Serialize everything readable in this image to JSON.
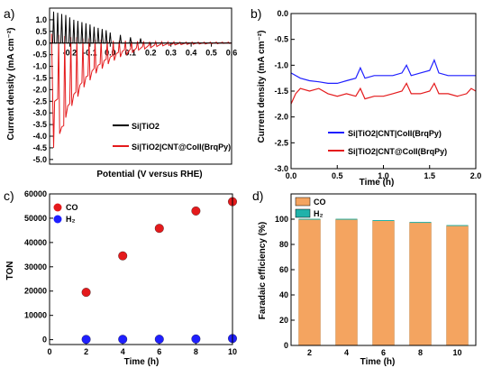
{
  "figure": {
    "panels": [
      {
        "letter": "a)"
      },
      {
        "letter": "b)"
      },
      {
        "letter": "c)"
      },
      {
        "letter": "d)"
      }
    ]
  },
  "chart_data": [
    {
      "panel": "a)",
      "type": "line",
      "xlabel": "Potential (V versus RHE)",
      "ylabel": "Current density (mA cm⁻²)",
      "xlim": [
        -0.3,
        0.6
      ],
      "ylim": [
        -5.2,
        1.5
      ],
      "xticks": [
        -0.2,
        -0.1,
        0.0,
        0.1,
        0.2,
        0.3,
        0.4,
        0.5,
        0.6
      ],
      "xtick_labels": [
        "-0.2",
        "-0.1",
        "0.0",
        "0.1",
        "0.2",
        "0.3",
        "0.4",
        "0.5",
        "0.6"
      ],
      "yticks": [
        -5.0,
        -4.5,
        -4.0,
        -3.5,
        -3.0,
        -2.5,
        -2.0,
        -1.5,
        -1.0,
        -0.5,
        0.0,
        0.5,
        1.0
      ],
      "ytick_labels": [
        "-5.0",
        "-4.5",
        "-4.0",
        "-3.5",
        "-3.0",
        "-2.5",
        "-2.0",
        "-1.5",
        "-1.0",
        "-0.5",
        "0.0",
        "0.5",
        "1.0"
      ],
      "legend_position": "lower-right",
      "series": [
        {
          "name": "Si|TiO2",
          "color": "#000000",
          "baseline": 0.0,
          "pulses": [
            {
              "x": -0.28,
              "peak": 1.35
            },
            {
              "x": -0.26,
              "peak": 1.3
            },
            {
              "x": -0.24,
              "peak": 1.25
            },
            {
              "x": -0.22,
              "peak": 1.2
            },
            {
              "x": -0.2,
              "peak": 1.1
            },
            {
              "x": -0.18,
              "peak": 1.0
            },
            {
              "x": -0.16,
              "peak": 0.95
            },
            {
              "x": -0.14,
              "peak": 0.9
            },
            {
              "x": -0.12,
              "peak": 0.85
            },
            {
              "x": -0.1,
              "peak": 0.8
            },
            {
              "x": -0.08,
              "peak": 0.7
            },
            {
              "x": -0.06,
              "peak": 0.65
            },
            {
              "x": -0.04,
              "peak": 0.6
            },
            {
              "x": -0.02,
              "peak": 0.55
            },
            {
              "x": 0.0,
              "peak": 0.45
            },
            {
              "x": 0.05,
              "peak": 0.35
            },
            {
              "x": 0.1,
              "peak": 0.25
            },
            {
              "x": 0.15,
              "peak": 0.2
            }
          ]
        },
        {
          "name": "Si|TiO2|CNT@CoII(BrqPy)",
          "color": "#e41a1c",
          "points": [
            [
              -0.29,
              0.4
            ],
            [
              -0.28,
              -4.5
            ],
            [
              -0.275,
              -2.5
            ],
            [
              -0.26,
              -2.4
            ],
            [
              -0.255,
              0.35
            ],
            [
              -0.25,
              -3.9
            ],
            [
              -0.24,
              -3.6
            ],
            [
              -0.23,
              -3.55
            ],
            [
              -0.225,
              0.3
            ],
            [
              -0.22,
              -3.2
            ],
            [
              -0.21,
              -2.7
            ],
            [
              -0.2,
              -2.6
            ],
            [
              -0.195,
              0.25
            ],
            [
              -0.19,
              -2.7
            ],
            [
              -0.18,
              -2.2
            ],
            [
              -0.17,
              -2.1
            ],
            [
              -0.165,
              0.25
            ],
            [
              -0.16,
              -2.3
            ],
            [
              -0.15,
              -1.8
            ],
            [
              -0.14,
              -1.7
            ],
            [
              -0.135,
              0.2
            ],
            [
              -0.13,
              -1.9
            ],
            [
              -0.12,
              -1.45
            ],
            [
              -0.11,
              -1.4
            ],
            [
              -0.105,
              0.2
            ],
            [
              -0.1,
              -1.6
            ],
            [
              -0.09,
              -1.2
            ],
            [
              -0.08,
              -1.1
            ],
            [
              -0.075,
              0.15
            ],
            [
              -0.07,
              -1.3
            ],
            [
              -0.06,
              -0.95
            ],
            [
              -0.05,
              -0.9
            ],
            [
              -0.045,
              0.15
            ],
            [
              -0.04,
              -1.1
            ],
            [
              -0.03,
              -0.75
            ],
            [
              -0.02,
              -0.7
            ],
            [
              -0.015,
              0.1
            ],
            [
              -0.01,
              -0.9
            ],
            [
              0.0,
              -0.6
            ],
            [
              0.01,
              -0.55
            ],
            [
              0.015,
              0.1
            ],
            [
              0.02,
              -0.75
            ],
            [
              0.03,
              -0.45
            ],
            [
              0.04,
              -0.4
            ],
            [
              0.045,
              0.1
            ],
            [
              0.05,
              -0.6
            ],
            [
              0.06,
              -0.35
            ],
            [
              0.07,
              -0.3
            ],
            [
              0.075,
              0.1
            ],
            [
              0.08,
              -0.5
            ],
            [
              0.1,
              -0.25
            ],
            [
              0.105,
              0.08
            ],
            [
              0.11,
              -0.4
            ],
            [
              0.13,
              -0.2
            ],
            [
              0.135,
              0.08
            ],
            [
              0.14,
              -0.3
            ],
            [
              0.16,
              -0.15
            ],
            [
              0.165,
              0.08
            ],
            [
              0.17,
              -0.25
            ],
            [
              0.19,
              -0.1
            ],
            [
              0.195,
              0.06
            ],
            [
              0.2,
              -0.2
            ],
            [
              0.22,
              -0.08
            ],
            [
              0.225,
              0.06
            ],
            [
              0.23,
              -0.15
            ],
            [
              0.25,
              -0.05
            ],
            [
              0.255,
              0.05
            ],
            [
              0.26,
              -0.12
            ],
            [
              0.28,
              -0.04
            ],
            [
              0.285,
              0.05
            ],
            [
              0.29,
              -0.1
            ],
            [
              0.31,
              -0.03
            ],
            [
              0.315,
              0.05
            ],
            [
              0.32,
              -0.08
            ],
            [
              0.34,
              -0.02
            ],
            [
              0.345,
              0.04
            ],
            [
              0.35,
              -0.07
            ],
            [
              0.37,
              -0.01
            ],
            [
              0.375,
              0.04
            ],
            [
              0.38,
              -0.06
            ],
            [
              0.4,
              0.0
            ],
            [
              0.405,
              0.04
            ],
            [
              0.41,
              -0.05
            ],
            [
              0.43,
              0.0
            ],
            [
              0.435,
              0.04
            ],
            [
              0.44,
              -0.04
            ],
            [
              0.46,
              0.01
            ],
            [
              0.465,
              0.04
            ],
            [
              0.47,
              -0.04
            ],
            [
              0.49,
              0.01
            ],
            [
              0.495,
              0.04
            ],
            [
              0.5,
              -0.03
            ],
            [
              0.52,
              0.02
            ],
            [
              0.525,
              0.04
            ],
            [
              0.53,
              -0.03
            ],
            [
              0.55,
              0.02
            ],
            [
              0.555,
              0.04
            ],
            [
              0.56,
              -0.02
            ],
            [
              0.58,
              0.02
            ],
            [
              0.585,
              0.04
            ],
            [
              0.59,
              -0.02
            ],
            [
              0.6,
              0.02
            ]
          ]
        }
      ]
    },
    {
      "panel": "b)",
      "type": "line",
      "xlabel": "Time (h)",
      "ylabel": "Current density (mA cm⁻²)",
      "xlim": [
        0.0,
        2.0
      ],
      "ylim": [
        -3.0,
        0.0
      ],
      "xticks": [
        0.0,
        0.5,
        1.0,
        1.5,
        2.0
      ],
      "xtick_labels": [
        "0.0",
        "0.5",
        "1.0",
        "1.5",
        "2.0"
      ],
      "yticks": [
        -3.0,
        -2.5,
        -2.0,
        -1.5,
        -1.0,
        -0.5,
        0.0
      ],
      "ytick_labels": [
        "-3.0",
        "-2.5",
        "-2.0",
        "-1.5",
        "-1.0",
        "-0.5",
        "0.0"
      ],
      "legend_position": "lower-right",
      "series": [
        {
          "name": "Si|TiO2|CNT|CoII(BrqPy)",
          "color": "#1f1fff",
          "points": [
            [
              0.0,
              -1.15
            ],
            [
              0.1,
              -1.25
            ],
            [
              0.2,
              -1.3
            ],
            [
              0.3,
              -1.32
            ],
            [
              0.4,
              -1.35
            ],
            [
              0.5,
              -1.35
            ],
            [
              0.6,
              -1.3
            ],
            [
              0.7,
              -1.25
            ],
            [
              0.75,
              -1.05
            ],
            [
              0.8,
              -1.25
            ],
            [
              0.9,
              -1.2
            ],
            [
              1.0,
              -1.2
            ],
            [
              1.1,
              -1.2
            ],
            [
              1.2,
              -1.15
            ],
            [
              1.25,
              -1.0
            ],
            [
              1.3,
              -1.2
            ],
            [
              1.4,
              -1.15
            ],
            [
              1.5,
              -1.1
            ],
            [
              1.55,
              -0.9
            ],
            [
              1.6,
              -1.15
            ],
            [
              1.7,
              -1.2
            ],
            [
              1.8,
              -1.2
            ],
            [
              1.9,
              -1.2
            ],
            [
              2.0,
              -1.2
            ]
          ]
        },
        {
          "name": "Si|TiO2|CNT@CoII(BrqPy)",
          "color": "#e41a1c",
          "points": [
            [
              0.0,
              -1.75
            ],
            [
              0.05,
              -1.55
            ],
            [
              0.1,
              -1.45
            ],
            [
              0.2,
              -1.5
            ],
            [
              0.3,
              -1.45
            ],
            [
              0.4,
              -1.55
            ],
            [
              0.5,
              -1.6
            ],
            [
              0.6,
              -1.55
            ],
            [
              0.7,
              -1.6
            ],
            [
              0.75,
              -1.45
            ],
            [
              0.8,
              -1.65
            ],
            [
              0.9,
              -1.6
            ],
            [
              1.0,
              -1.6
            ],
            [
              1.1,
              -1.55
            ],
            [
              1.2,
              -1.5
            ],
            [
              1.25,
              -1.35
            ],
            [
              1.3,
              -1.55
            ],
            [
              1.4,
              -1.55
            ],
            [
              1.5,
              -1.5
            ],
            [
              1.55,
              -1.35
            ],
            [
              1.6,
              -1.55
            ],
            [
              1.7,
              -1.55
            ],
            [
              1.8,
              -1.6
            ],
            [
              1.9,
              -1.55
            ],
            [
              1.95,
              -1.45
            ],
            [
              2.0,
              -1.5
            ]
          ]
        }
      ]
    },
    {
      "panel": "c)",
      "type": "scatter",
      "xlabel": "Time (h)",
      "ylabel": "TON",
      "xlim": [
        0,
        10
      ],
      "ylim": [
        -2000,
        60000
      ],
      "xticks": [
        0,
        2,
        4,
        6,
        8,
        10
      ],
      "xtick_labels": [
        "0",
        "2",
        "4",
        "6",
        "8",
        "10"
      ],
      "yticks": [
        0,
        10000,
        20000,
        30000,
        40000,
        50000,
        60000
      ],
      "ytick_labels": [
        "0",
        "10000",
        "20000",
        "30000",
        "40000",
        "50000",
        "60000"
      ],
      "legend_position": "top-left",
      "series": [
        {
          "name": "CO",
          "color": "#e41a1c",
          "x": [
            2,
            4,
            6,
            8,
            10
          ],
          "y": [
            19500,
            34500,
            45800,
            53000,
            56800
          ]
        },
        {
          "name": "H₂",
          "color": "#1f1fff",
          "x": [
            2,
            4,
            6,
            8,
            10
          ],
          "y": [
            100,
            150,
            200,
            300,
            500
          ]
        }
      ]
    },
    {
      "panel": "d)",
      "type": "bar",
      "xlabel": "Time (h)",
      "ylabel": "Faradaic efficiency (%)",
      "categories": [
        "2",
        "4",
        "6",
        "8",
        "10"
      ],
      "ylim": [
        0,
        120
      ],
      "yticks": [
        0,
        20,
        40,
        60,
        80,
        100
      ],
      "ytick_labels": [
        "0",
        "20",
        "40",
        "60",
        "80",
        "100"
      ],
      "legend_position": "top-left",
      "series": [
        {
          "name": "CO",
          "color": "#f4a460",
          "values": [
            100,
            100,
            99,
            97.5,
            95
          ]
        },
        {
          "name": "H₂",
          "color": "#20b2aa",
          "values": [
            0.3,
            0.3,
            0.3,
            0.3,
            0.3
          ]
        }
      ]
    }
  ]
}
